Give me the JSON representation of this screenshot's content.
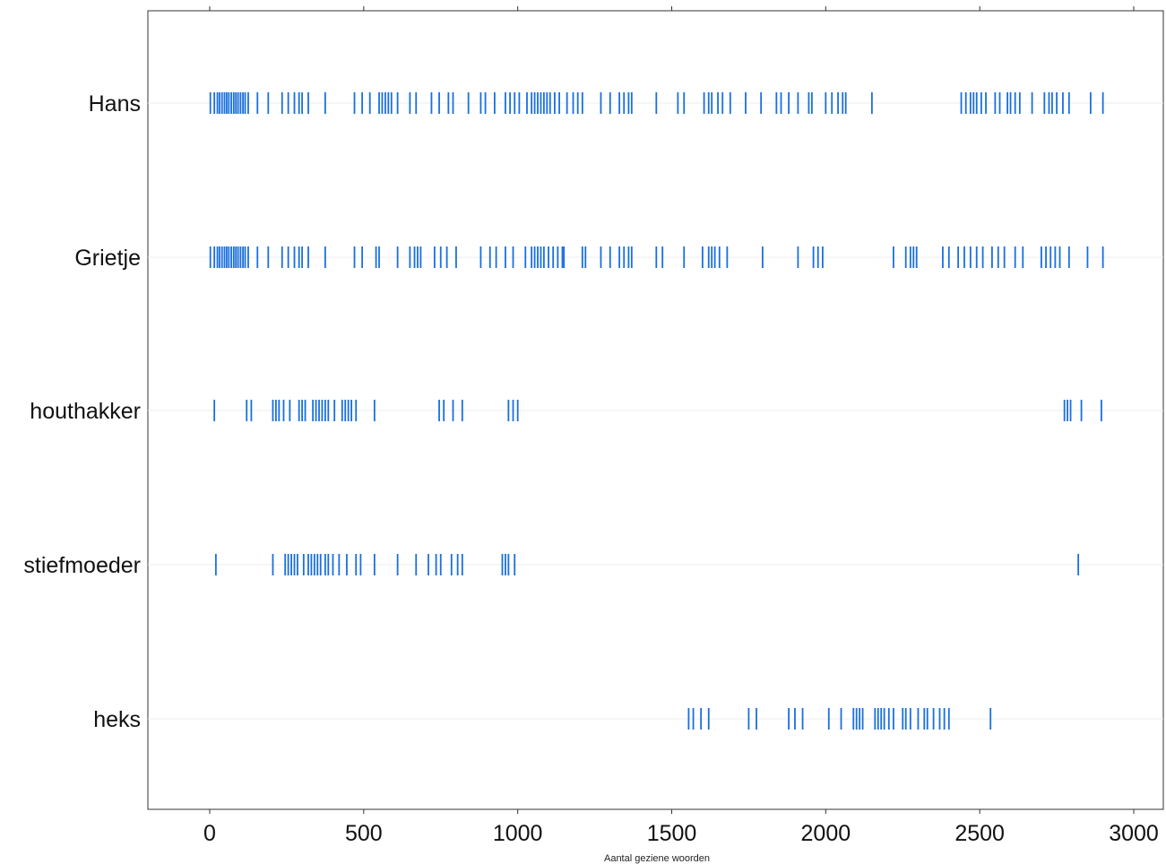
{
  "chart_data": {
    "type": "scatter",
    "marker": "vertical-line",
    "xlabel": "Aantal geziene woorden",
    "ylabel": "",
    "xlim": [
      -200,
      3100
    ],
    "xticks": [
      0,
      500,
      1000,
      1500,
      2000,
      2500,
      3000
    ],
    "xtick_labels": [
      "0",
      "500",
      "1000",
      "1500",
      "2000",
      "2500",
      "3000"
    ],
    "grid": "horizontal lines at each category",
    "mark_color": "#1a6fe0",
    "categories": [
      "Hans",
      "Grietje",
      "houthakker",
      "stiefmoeder",
      "heks"
    ],
    "series": [
      {
        "name": "Hans",
        "x": [
          2,
          15,
          25,
          32,
          40,
          48,
          55,
          62,
          70,
          78,
          85,
          92,
          100,
          108,
          115,
          125,
          155,
          190,
          235,
          255,
          275,
          290,
          300,
          320,
          375,
          470,
          495,
          520,
          550,
          560,
          570,
          580,
          590,
          610,
          650,
          670,
          720,
          745,
          775,
          790,
          840,
          880,
          895,
          925,
          960,
          975,
          990,
          1005,
          1030,
          1045,
          1055,
          1065,
          1075,
          1085,
          1095,
          1105,
          1120,
          1135,
          1160,
          1180,
          1195,
          1210,
          1270,
          1300,
          1330,
          1345,
          1360,
          1370,
          1450,
          1520,
          1540,
          1605,
          1620,
          1630,
          1650,
          1665,
          1690,
          1740,
          1790,
          1840,
          1855,
          1880,
          1910,
          1945,
          1955,
          2000,
          2020,
          2040,
          2055,
          2065,
          2150,
          2440,
          2455,
          2470,
          2480,
          2490,
          2505,
          2520,
          2550,
          2565,
          2590,
          2600,
          2615,
          2630,
          2670,
          2710,
          2725,
          2735,
          2750,
          2770,
          2790,
          2860,
          2900
        ]
      },
      {
        "name": "Grietje",
        "x": [
          2,
          15,
          25,
          32,
          40,
          48,
          55,
          62,
          70,
          78,
          85,
          92,
          100,
          108,
          115,
          125,
          155,
          190,
          235,
          255,
          275,
          290,
          300,
          320,
          375,
          470,
          495,
          540,
          550,
          610,
          650,
          665,
          675,
          685,
          730,
          750,
          770,
          800,
          880,
          910,
          930,
          960,
          985,
          1025,
          1045,
          1055,
          1065,
          1075,
          1085,
          1100,
          1115,
          1130,
          1145,
          1150,
          1210,
          1220,
          1270,
          1300,
          1330,
          1345,
          1360,
          1370,
          1450,
          1470,
          1540,
          1600,
          1620,
          1630,
          1640,
          1655,
          1680,
          1795,
          1910,
          1960,
          1975,
          1990,
          2220,
          2260,
          2275,
          2285,
          2295,
          2380,
          2400,
          2430,
          2450,
          2470,
          2490,
          2510,
          2540,
          2560,
          2580,
          2615,
          2640,
          2700,
          2715,
          2730,
          2745,
          2760,
          2790,
          2850,
          2900
        ]
      },
      {
        "name": "houthakker",
        "x": [
          15,
          120,
          135,
          205,
          215,
          225,
          240,
          260,
          290,
          300,
          310,
          335,
          345,
          355,
          365,
          375,
          385,
          405,
          430,
          440,
          450,
          460,
          475,
          535,
          745,
          760,
          790,
          820,
          970,
          985,
          1000,
          2775,
          2785,
          2795,
          2830,
          2895
        ]
      },
      {
        "name": "stiefmoeder",
        "x": [
          20,
          205,
          245,
          255,
          265,
          275,
          285,
          305,
          320,
          330,
          340,
          350,
          360,
          375,
          385,
          400,
          420,
          445,
          475,
          490,
          535,
          610,
          670,
          710,
          735,
          750,
          785,
          805,
          820,
          950,
          960,
          970,
          990,
          2820
        ]
      },
      {
        "name": "heks",
        "x": [
          1555,
          1570,
          1595,
          1620,
          1750,
          1775,
          1880,
          1900,
          1925,
          2010,
          2050,
          2090,
          2100,
          2110,
          2120,
          2160,
          2170,
          2180,
          2190,
          2205,
          2220,
          2250,
          2260,
          2275,
          2300,
          2320,
          2330,
          2350,
          2370,
          2385,
          2400,
          2535
        ]
      }
    ]
  }
}
